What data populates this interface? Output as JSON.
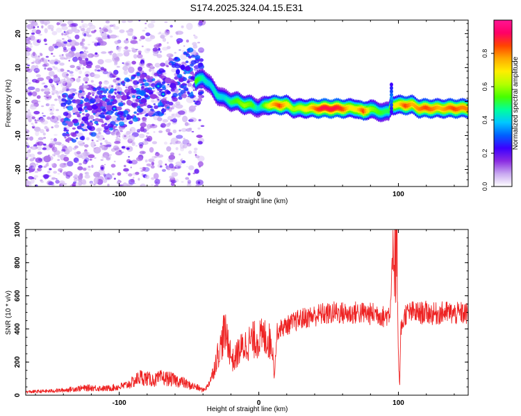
{
  "title": "S174.2025.324.04.15.E31",
  "chart_data": [
    {
      "type": "heatmap",
      "title": "S174.2025.324.04.15.E31",
      "xlabel": "Height of straight line (km)",
      "ylabel": "Frequency (Hz)",
      "xlim": [
        -167,
        150
      ],
      "ylim": [
        -25,
        24
      ],
      "xticks": [
        -100,
        0,
        100
      ],
      "yticks": [
        -20,
        -10,
        0,
        10,
        20
      ],
      "colorbar": {
        "label": "Normalized spectral amplitude",
        "range": [
          0,
          1
        ],
        "ticks": [
          "0.0",
          "0.2",
          "0.4",
          "0.6",
          "0.8"
        ],
        "tick_values": [
          0.0,
          0.2,
          0.4,
          0.6,
          0.8
        ],
        "colors": [
          "#ffffff",
          "#c8a8f0",
          "#8a2be2",
          "#3c00ff",
          "#0060ff",
          "#00c8ff",
          "#00ff9c",
          "#46ff00",
          "#b4ff00",
          "#ffee00",
          "#ffaa00",
          "#ff4400",
          "#ff0066",
          "#ff1493"
        ]
      },
      "ridge_x": [
        -135,
        -128,
        -120,
        -110,
        -100,
        -90,
        -80,
        -70,
        -62,
        -55,
        -50,
        -45,
        -40,
        -35,
        -30,
        -25,
        -20,
        -15,
        -10,
        -5,
        0,
        5,
        10,
        15,
        20,
        25,
        30,
        35,
        40,
        45,
        50,
        55,
        60,
        65,
        70,
        75,
        80,
        85,
        90,
        93,
        95,
        97,
        100,
        105,
        110,
        115,
        120,
        125,
        130,
        135,
        140,
        145,
        148
      ],
      "ridge_y": [
        -5,
        -4,
        -3,
        -2,
        -1,
        1,
        2,
        3,
        6,
        8,
        9,
        6,
        7,
        5,
        2,
        1,
        0,
        0,
        -1,
        -1,
        -2,
        -1,
        -1,
        -1,
        -1,
        -2,
        -2,
        -2,
        -2,
        -2,
        -2,
        -2,
        -2,
        -2,
        -2,
        -3,
        -2,
        -3,
        -3,
        -3,
        -1,
        -1,
        -1,
        -1,
        -1,
        -2,
        -2,
        -2,
        -2,
        -2,
        -2,
        -2,
        -2
      ],
      "ridge_amplitude": [
        0.3,
        0.35,
        0.35,
        0.35,
        0.4,
        0.4,
        0.45,
        0.45,
        0.4,
        0.45,
        0.5,
        0.55,
        0.45,
        0.4,
        0.45,
        0.4,
        0.5,
        0.55,
        0.6,
        0.55,
        0.4,
        0.6,
        0.75,
        0.85,
        0.7,
        0.6,
        0.65,
        0.7,
        0.8,
        0.9,
        0.9,
        0.9,
        0.85,
        0.7,
        0.7,
        0.85,
        0.6,
        0.55,
        0.5,
        0.5,
        0.6,
        0.7,
        0.7,
        0.85,
        0.75,
        0.8,
        0.85,
        0.8,
        0.75,
        0.8,
        0.85,
        0.8,
        0.8
      ]
    },
    {
      "type": "line",
      "xlabel": "Height of straight line (km)",
      "ylabel": "SNR (10 * v/v)",
      "xlim": [
        -167,
        150
      ],
      "ylim": [
        0,
        1000
      ],
      "xticks": [
        -100,
        0,
        100
      ],
      "yticks": [
        0,
        200,
        400,
        600,
        800,
        1000
      ],
      "color": "#ee2222",
      "series": [
        {
          "name": "SNR",
          "x": [
            -167,
            -150,
            -140,
            -130,
            -120,
            -110,
            -100,
            -95,
            -90,
            -85,
            -80,
            -75,
            -70,
            -65,
            -60,
            -55,
            -50,
            -45,
            -40,
            -37,
            -33,
            -30,
            -27,
            -25,
            -22,
            -20,
            -18,
            -15,
            -10,
            -5,
            0,
            5,
            10,
            11,
            13,
            15,
            20,
            25,
            30,
            35,
            40,
            45,
            50,
            55,
            60,
            65,
            70,
            75,
            80,
            85,
            90,
            94,
            96,
            98,
            99,
            100,
            101,
            102,
            105,
            110,
            115,
            120,
            125,
            130,
            135,
            140,
            145,
            150
          ],
          "values": [
            20,
            25,
            30,
            40,
            45,
            40,
            50,
            60,
            80,
            110,
            100,
            90,
            105,
            100,
            90,
            80,
            60,
            50,
            30,
            50,
            130,
            230,
            300,
            380,
            330,
            240,
            200,
            260,
            300,
            330,
            340,
            350,
            300,
            100,
            380,
            400,
            420,
            440,
            460,
            470,
            480,
            490,
            490,
            500,
            495,
            490,
            500,
            495,
            490,
            495,
            470,
            500,
            900,
            650,
            1000,
            180,
            60,
            400,
            490,
            500,
            495,
            500,
            490,
            495,
            500,
            490,
            495,
            490
          ]
        }
      ]
    }
  ]
}
